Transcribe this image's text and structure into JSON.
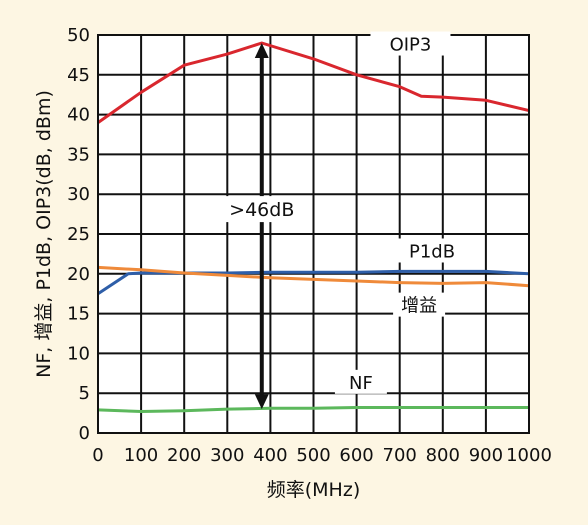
{
  "chart_data": {
    "type": "line",
    "xlabel": "频率(MHz)",
    "ylabel": "NF, 增益, P1dB, OIP3(dB, dBm)",
    "xlim": [
      0,
      1000
    ],
    "ylim": [
      0,
      50
    ],
    "xticks": [
      0,
      100,
      200,
      300,
      400,
      500,
      600,
      700,
      800,
      900,
      1000
    ],
    "yticks": [
      0,
      5,
      10,
      15,
      20,
      25,
      30,
      35,
      40,
      45,
      50
    ],
    "grid": true,
    "series": [
      {
        "name": "OIP3",
        "color": "#d9272e",
        "x": [
          0,
          100,
          200,
          300,
          380,
          500,
          600,
          700,
          750,
          800,
          900,
          1000
        ],
        "y": [
          39,
          42.8,
          46.2,
          47.6,
          49,
          47,
          45,
          43.5,
          42.3,
          42.2,
          41.8,
          40.5
        ]
      },
      {
        "name": "P1dB",
        "color": "#2e5ea8",
        "x": [
          0,
          70,
          100,
          200,
          300,
          400,
          500,
          600,
          700,
          800,
          900,
          1000
        ],
        "y": [
          17.5,
          20,
          20.1,
          20.1,
          20.1,
          20.2,
          20.2,
          20.2,
          20.3,
          20.3,
          20.3,
          20
        ]
      },
      {
        "name": "增益",
        "color": "#ef8a3a",
        "x": [
          0,
          100,
          200,
          300,
          400,
          500,
          600,
          700,
          800,
          900,
          1000
        ],
        "y": [
          20.8,
          20.5,
          20.1,
          19.8,
          19.5,
          19.3,
          19.1,
          18.9,
          18.8,
          18.9,
          18.5
        ]
      },
      {
        "name": "NF",
        "color": "#5cb85c",
        "x": [
          0,
          100,
          200,
          300,
          400,
          500,
          600,
          700,
          800,
          900,
          1000
        ],
        "y": [
          2.9,
          2.7,
          2.8,
          3.0,
          3.1,
          3.1,
          3.2,
          3.2,
          3.2,
          3.2,
          3.2
        ]
      }
    ],
    "annotations": [
      {
        "text": ">46dB",
        "type": "double-arrow",
        "x": 380,
        "y_from": 3.0,
        "y_to": 49
      }
    ]
  }
}
